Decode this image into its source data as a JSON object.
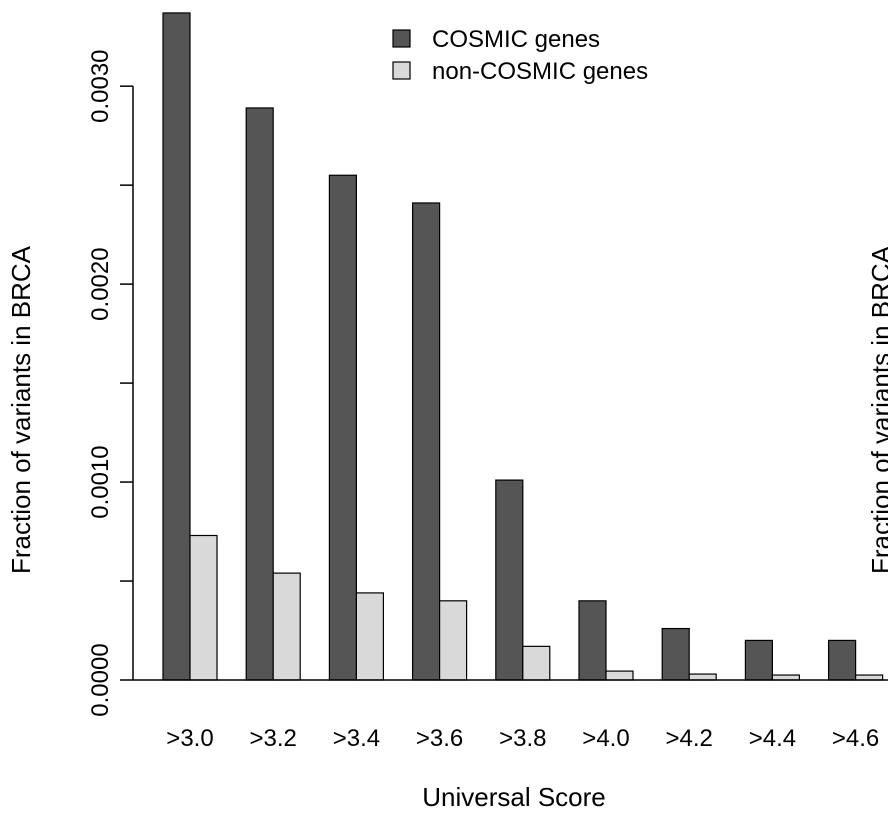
{
  "chart_data": {
    "type": "bar",
    "categories": [
      ">3.0",
      ">3.2",
      ">3.4",
      ">3.6",
      ">3.8",
      ">4.0",
      ">4.2",
      ">4.4",
      ">4.6"
    ],
    "series": [
      {
        "name": "COSMIC genes",
        "color": "#555555",
        "values": [
          0.00337,
          0.00289,
          0.00255,
          0.00241,
          0.00101,
          0.0004,
          0.00026,
          0.0002,
          0.0002
        ]
      },
      {
        "name": "non-COSMIC genes",
        "color": "#d9d9d9",
        "values": [
          0.00073,
          0.00054,
          0.00044,
          0.0004,
          0.00017,
          4.5e-05,
          3e-05,
          2.5e-05,
          2.5e-05
        ]
      }
    ],
    "ylabel": "Fraction of variants in BRCA",
    "xlabel": "Universal Score",
    "ylim": [
      0,
      0.0034
    ],
    "y_ticks": [
      0,
      0.0005,
      0.001,
      0.0015,
      0.002,
      0.0025,
      0.003
    ],
    "y_tick_labels": [
      "0.0000",
      "0.0010",
      "0.0020",
      "0.0030"
    ],
    "right_axis_fragment": "Fraction of variants in BRCA",
    "legend_position": "top-center"
  }
}
